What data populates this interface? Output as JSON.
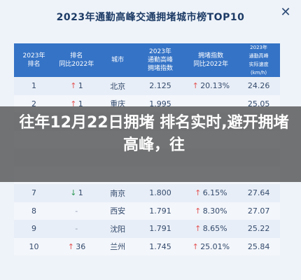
{
  "title": "2023年通勤高峰交通拥堵城市榜TOP10",
  "close_icon": "close-icon",
  "colors": {
    "header": "#3573c6",
    "up": "#e35656",
    "down": "#2f9a57"
  },
  "headers": [
    "2023年\n排名",
    "排名\n同比2022年",
    "城市",
    "2023年\n通勤高峰\n拥堵指数",
    "拥堵指数\n同比2022年",
    "2023年\n通勤高峰\n实际速度\n(km/h)"
  ],
  "rows": [
    {
      "rank": "1",
      "change": "1",
      "dir": "up",
      "city": "北京",
      "index": "2.125",
      "idx_change": "20.13%",
      "idx_dir": "up",
      "speed": "24.26"
    },
    {
      "rank": "2",
      "change": "1",
      "dir": "up",
      "city": "重庆",
      "index": "1.995",
      "idx_change": "",
      "idx_dir": "",
      "speed": "25.05"
    },
    {
      "rank": "",
      "change": "",
      "dir": "",
      "city": "",
      "index": "",
      "idx_change": "",
      "idx_dir": "",
      "speed": ""
    },
    {
      "rank": "",
      "change": "",
      "dir": "",
      "city": "",
      "index": "",
      "idx_change": "",
      "idx_dir": "",
      "speed": ""
    },
    {
      "rank": "",
      "change": "",
      "dir": "",
      "city": "",
      "index": "",
      "idx_change": "",
      "idx_dir": "",
      "speed": ""
    },
    {
      "rank": "",
      "change": "",
      "dir": "",
      "city": "",
      "index": "",
      "idx_change": "",
      "idx_dir": "",
      "speed": ""
    },
    {
      "rank": "7",
      "change": "1",
      "dir": "down",
      "city": "南京",
      "index": "1.800",
      "idx_change": "6.15%",
      "idx_dir": "up",
      "speed": "27.64"
    },
    {
      "rank": "8",
      "change": "-",
      "dir": "none",
      "city": "西安",
      "index": "1.791",
      "idx_change": "8.30%",
      "idx_dir": "up",
      "speed": "27.07"
    },
    {
      "rank": "9",
      "change": "-",
      "dir": "none",
      "city": "沈阳",
      "index": "1.791",
      "idx_change": "8.65%",
      "idx_dir": "up",
      "speed": "25.22"
    },
    {
      "rank": "10",
      "change": "36",
      "dir": "up",
      "city": "兰州",
      "index": "1.745",
      "idx_change": "25.01%",
      "idx_dir": "up",
      "speed": "25.84"
    }
  ],
  "banner": "往年12月22日拥堵 排名实时,避开拥堵高峰，往"
}
